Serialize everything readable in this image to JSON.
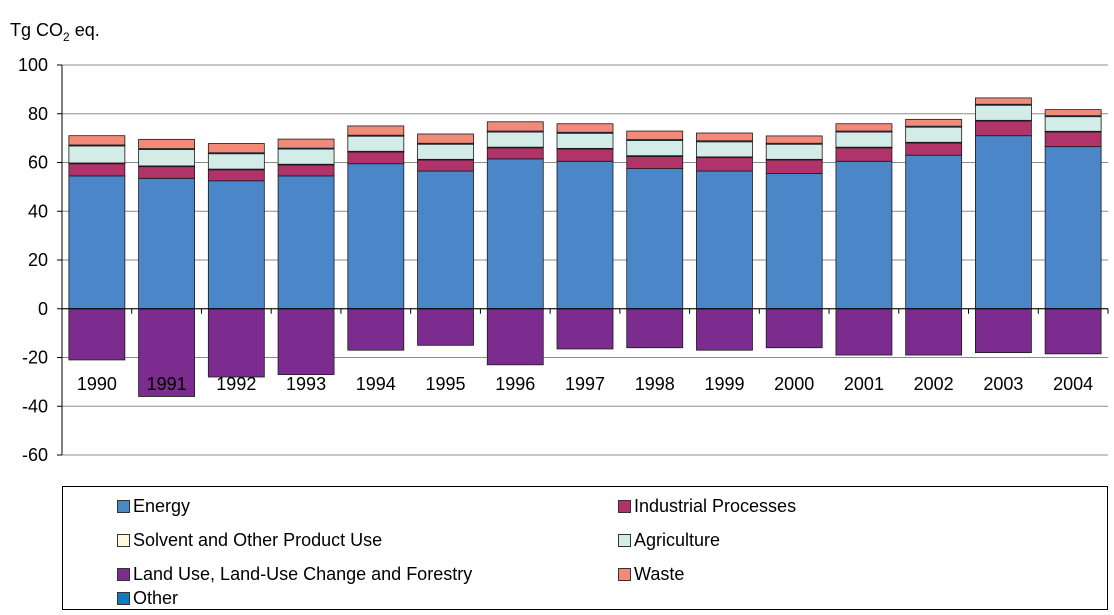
{
  "chart_data": {
    "type": "bar",
    "stacked": true,
    "ylabel": "Tg CO₂ eq.",
    "ylabel_prefix": "Tg CO",
    "ylabel_sub": "2",
    "ylabel_suffix": " eq.",
    "ylim": [
      -60,
      100
    ],
    "yticks": [
      100,
      80,
      60,
      40,
      20,
      0,
      -20,
      -40,
      -60
    ],
    "categories": [
      "1990",
      "1991",
      "1992",
      "1993",
      "1994",
      "1995",
      "1996",
      "1997",
      "1998",
      "1999",
      "2000",
      "2001",
      "2002",
      "2003",
      "2004"
    ],
    "series": [
      {
        "name": "Energy",
        "color": "#4a86c8",
        "values": [
          54.5,
          53.5,
          52.5,
          54.5,
          59.5,
          56.5,
          61.5,
          60.5,
          57.5,
          56.5,
          55.5,
          60.5,
          63,
          71,
          66.5
        ]
      },
      {
        "name": "Industrial Processes",
        "color": "#b0336a",
        "values": [
          5,
          4.8,
          4.5,
          4.5,
          4.8,
          4.5,
          4.5,
          5,
          5,
          5.5,
          5.5,
          5.5,
          5,
          6,
          6
        ]
      },
      {
        "name": "Solvent and Other Product Use",
        "color": "#fffadc",
        "values": [
          0.3,
          0.3,
          0.3,
          0.3,
          0.3,
          0.3,
          0.3,
          0.3,
          0.3,
          0.3,
          0.3,
          0.3,
          0.3,
          0.3,
          0.3
        ]
      },
      {
        "name": "Agriculture",
        "color": "#d4ece8",
        "values": [
          7,
          6.7,
          6.3,
          6.2,
          6.2,
          6.2,
          6.2,
          6.2,
          6.2,
          6.2,
          6.2,
          6.2,
          6.2,
          6.2,
          6
        ]
      },
      {
        "name": "Land Use, Land-Use Change and Forestry",
        "color": "#7b2c8e",
        "values": [
          -21,
          -36,
          -28,
          -27,
          -17,
          -15,
          -23,
          -16.5,
          -16,
          -17,
          -16,
          -19,
          -19,
          -18,
          -18.5
        ]
      },
      {
        "name": "Waste",
        "color": "#f28a7a",
        "values": [
          3.8,
          3.8,
          3.8,
          3.7,
          3.8,
          3.8,
          3.8,
          3.5,
          3.5,
          3.2,
          3,
          3,
          2.8,
          2.6,
          2.5
        ]
      },
      {
        "name": "Other",
        "color": "#0f7ac1",
        "values": [
          0.4,
          0.4,
          0.4,
          0.4,
          0.4,
          0.4,
          0.4,
          0.4,
          0.4,
          0.4,
          0.4,
          0.4,
          0.4,
          0.4,
          0.4
        ]
      }
    ],
    "grid": true,
    "legend_position": "bottom"
  }
}
